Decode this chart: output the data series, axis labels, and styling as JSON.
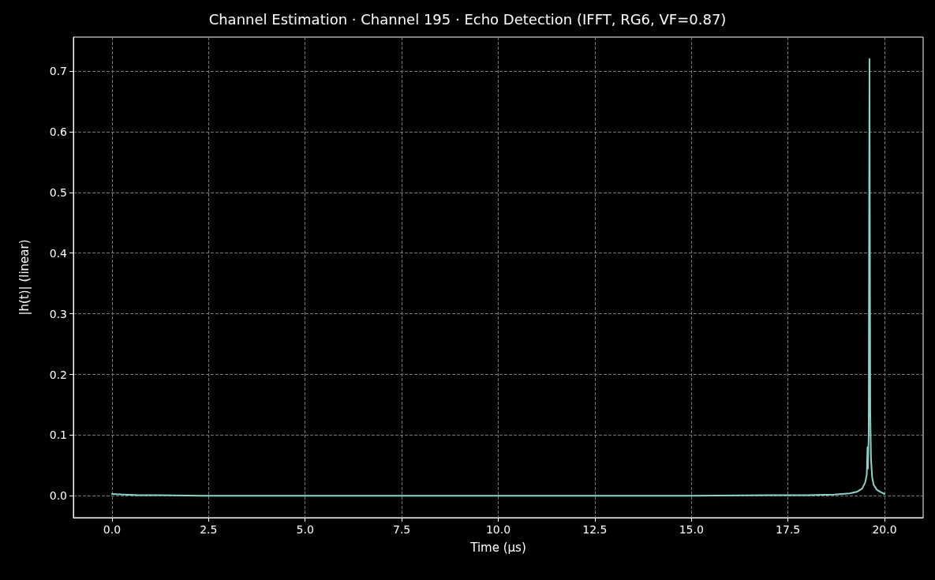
{
  "chart_data": {
    "type": "line",
    "title": "Channel Estimation · Channel 195 · Echo Detection (IFFT, RG6, VF=0.87)",
    "xlabel": "Time (µs)",
    "ylabel": "|h(t)| (linear)",
    "x": [
      0,
      0.3,
      0.7,
      1.2,
      2.5,
      5,
      7.5,
      10,
      12.5,
      15,
      17,
      18,
      18.7,
      19.1,
      19.3,
      19.42,
      19.5,
      19.54,
      19.56,
      19.57,
      19.59,
      19.61,
      19.63,
      19.65,
      19.68,
      19.72,
      19.8,
      19.9,
      20
    ],
    "series": [
      {
        "color": "#8dd3c7",
        "values": [
          0.003,
          0.002,
          0.001,
          0.001,
          0,
          0,
          0,
          0,
          0,
          0,
          0.001,
          0.001,
          0.002,
          0.004,
          0.007,
          0.012,
          0.022,
          0.035,
          0.08,
          0.045,
          0.1,
          0.72,
          0.14,
          0.06,
          0.03,
          0.018,
          0.01,
          0.006,
          0.003
        ]
      }
    ],
    "xlim": [
      -1,
      21
    ],
    "xticks": [
      {
        "value": 0,
        "label": "0.0"
      },
      2.5,
      {
        "value": 5,
        "label": "5.0"
      },
      7.5,
      {
        "value": 10,
        "label": "10.0"
      },
      12.5,
      {
        "value": 15,
        "label": "15.0"
      },
      17.5,
      {
        "value": 20,
        "label": "20.0"
      }
    ],
    "ylim": [
      -0.036,
      0.756
    ],
    "yticks": [
      {
        "value": 0,
        "label": "0.0"
      },
      0.1,
      0.2,
      0.3,
      0.4,
      0.5,
      0.6,
      0.7
    ],
    "grid": true,
    "marker": "none",
    "line_style": "solid"
  }
}
